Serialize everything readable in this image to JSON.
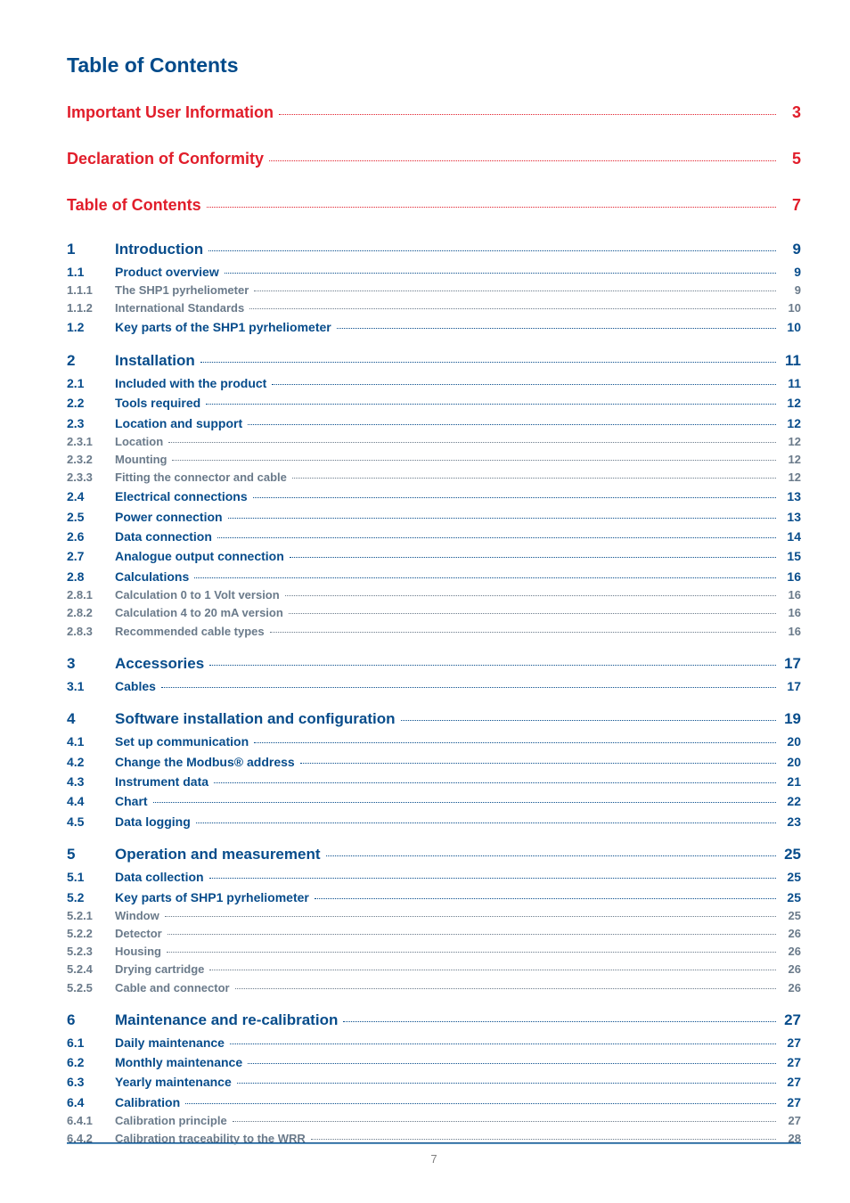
{
  "title": "Table of Contents",
  "page_number": "7",
  "colors": {
    "heading": "#004a8a",
    "section": "#074c8b",
    "subsection": "#6a7a8a",
    "red": "#e11d2a",
    "rule_top": "#074c8b",
    "rule_bottom": "#6ea3c9",
    "pagenum": "#7f7f7f",
    "background": "#ffffff"
  },
  "entries": [
    {
      "level": 0,
      "num": "",
      "title": "Important User Information",
      "page": "3",
      "spacer_after": "lg"
    },
    {
      "level": 0,
      "num": "",
      "title": "Declaration of Conformity",
      "page": "5",
      "spacer_after": "lg"
    },
    {
      "level": 0,
      "num": "",
      "title": "Table of Contents",
      "page": "7",
      "spacer_after": "lg"
    },
    {
      "level": 1,
      "num": "1",
      "title": "Introduction",
      "page": "9"
    },
    {
      "level": 2,
      "num": "1.1",
      "title": "Product overview",
      "page": "9"
    },
    {
      "level": 3,
      "num": "1.1.1",
      "title": "The SHP1 pyrheliometer",
      "page": "9"
    },
    {
      "level": 3,
      "num": "1.1.2",
      "title": "International Standards",
      "page": "10"
    },
    {
      "level": 2,
      "num": "1.2",
      "title": "Key parts of the SHP1 pyrheliometer",
      "page": "10",
      "spacer_after": "md"
    },
    {
      "level": 1,
      "num": "2",
      "title": "Installation",
      "page": "11"
    },
    {
      "level": 2,
      "num": "2.1",
      "title": "Included with the product",
      "page": "11"
    },
    {
      "level": 2,
      "num": "2.2",
      "title": "Tools required",
      "page": "12"
    },
    {
      "level": 2,
      "num": "2.3",
      "title": "Location and support",
      "page": "12"
    },
    {
      "level": 3,
      "num": "2.3.1",
      "title": "Location",
      "page": "12"
    },
    {
      "level": 3,
      "num": "2.3.2",
      "title": "Mounting",
      "page": "12"
    },
    {
      "level": 3,
      "num": "2.3.3",
      "title": "Fitting the connector and cable",
      "page": "12"
    },
    {
      "level": 2,
      "num": "2.4",
      "title": "Electrical connections",
      "page": "13"
    },
    {
      "level": 2,
      "num": "2.5",
      "title": "Power connection",
      "page": "13"
    },
    {
      "level": 2,
      "num": "2.6",
      "title": "Data connection",
      "page": "14"
    },
    {
      "level": 2,
      "num": "2.7",
      "title": "Analogue output connection",
      "page": "15"
    },
    {
      "level": 2,
      "num": "2.8",
      "title": "Calculations",
      "page": "16"
    },
    {
      "level": 3,
      "num": "2.8.1",
      "title": "Calculation 0 to 1 Volt version",
      "page": "16"
    },
    {
      "level": 3,
      "num": "2.8.2",
      "title": "Calculation 4 to 20 mA version",
      "page": "16"
    },
    {
      "level": 3,
      "num": "2.8.3",
      "title": "Recommended cable types",
      "page": "16",
      "spacer_after": "md"
    },
    {
      "level": 1,
      "num": "3",
      "title": "Accessories",
      "page": "17"
    },
    {
      "level": 2,
      "num": "3.1",
      "title": "Cables",
      "page": "17",
      "spacer_after": "md"
    },
    {
      "level": 1,
      "num": "4",
      "title": "Software installation and configuration",
      "page": "19"
    },
    {
      "level": 2,
      "num": "4.1",
      "title": "Set up communication",
      "page": "20"
    },
    {
      "level": 2,
      "num": "4.2",
      "title": "Change the Modbus® address",
      "page": "20"
    },
    {
      "level": 2,
      "num": "4.3",
      "title": "Instrument data",
      "page": "21"
    },
    {
      "level": 2,
      "num": "4.4",
      "title": "Chart",
      "page": "22"
    },
    {
      "level": 2,
      "num": "4.5",
      "title": "Data logging",
      "page": "23",
      "spacer_after": "md"
    },
    {
      "level": 1,
      "num": "5",
      "title": "Operation and measurement",
      "page": "25"
    },
    {
      "level": 2,
      "num": "5.1",
      "title": "Data collection",
      "page": "25"
    },
    {
      "level": 2,
      "num": "5.2",
      "title": "Key parts of SHP1 pyrheliometer",
      "page": "25"
    },
    {
      "level": 3,
      "num": "5.2.1",
      "title": "Window",
      "page": "25"
    },
    {
      "level": 3,
      "num": "5.2.2",
      "title": "Detector",
      "page": "26"
    },
    {
      "level": 3,
      "num": "5.2.3",
      "title": "Housing",
      "page": "26"
    },
    {
      "level": 3,
      "num": "5.2.4",
      "title": "Drying cartridge",
      "page": "26"
    },
    {
      "level": 3,
      "num": "5.2.5",
      "title": "Cable and connector",
      "page": "26",
      "spacer_after": "md"
    },
    {
      "level": 1,
      "num": "6",
      "title": "Maintenance and re-calibration",
      "page": "27"
    },
    {
      "level": 2,
      "num": "6.1",
      "title": "Daily maintenance",
      "page": "27"
    },
    {
      "level": 2,
      "num": "6.2",
      "title": "Monthly maintenance",
      "page": "27"
    },
    {
      "level": 2,
      "num": "6.3",
      "title": "Yearly maintenance",
      "page": "27"
    },
    {
      "level": 2,
      "num": "6.4",
      "title": "Calibration",
      "page": "27"
    },
    {
      "level": 3,
      "num": "6.4.1",
      "title": "Calibration principle",
      "page": "27"
    },
    {
      "level": 3,
      "num": "6.4.2",
      "title": "Calibration traceability to the WRR",
      "page": "28"
    }
  ]
}
